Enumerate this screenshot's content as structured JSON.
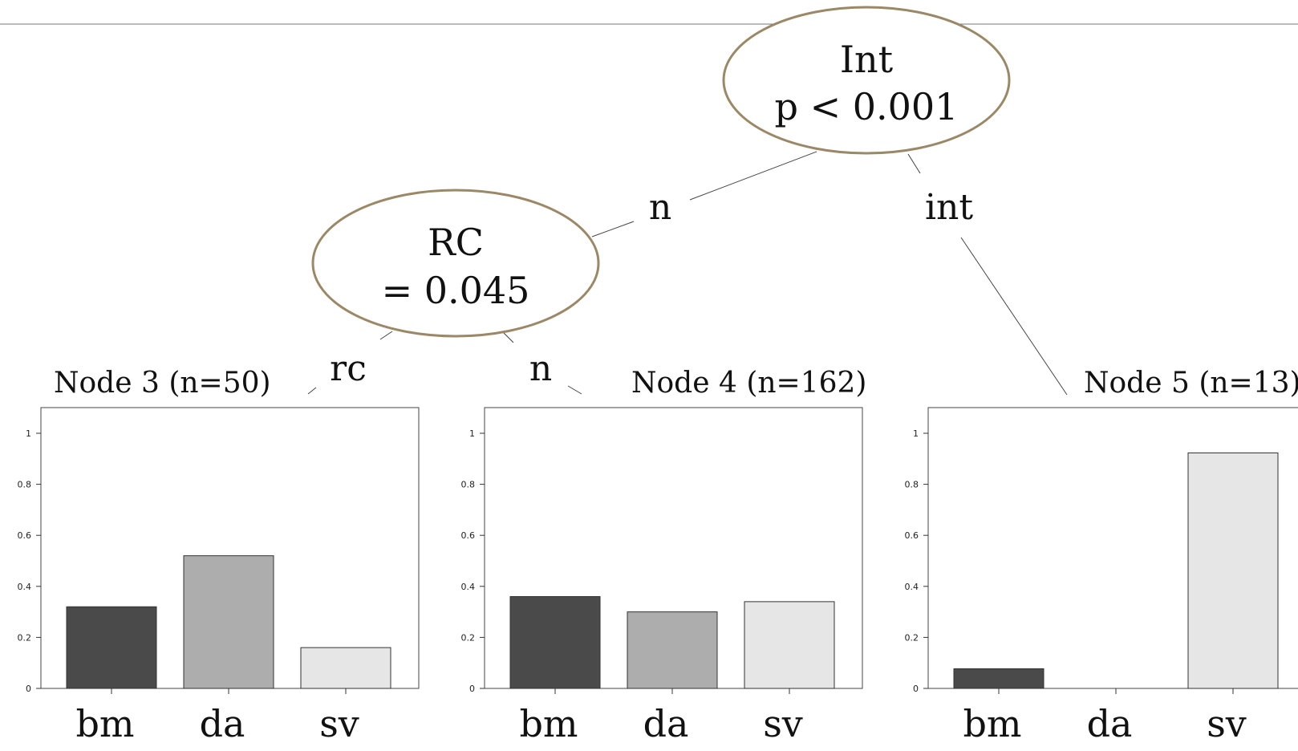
{
  "inner_nodes": [
    {
      "id": 1,
      "variable": "Int",
      "stat": "p < 0.001"
    },
    {
      "id": 2,
      "variable": "RC",
      "stat": "= 0.045"
    }
  ],
  "edges": [
    {
      "from": 1,
      "to": 2,
      "label": "n"
    },
    {
      "from": 1,
      "to": 5,
      "label": "int"
    },
    {
      "from": 2,
      "to": 3,
      "label": "rc"
    },
    {
      "from": 2,
      "to": 4,
      "label": "n"
    }
  ],
  "chart_data": [
    {
      "type": "bar",
      "title": "Node 3 (n=50)",
      "categories": [
        "bm",
        "da",
        "sv"
      ],
      "values": [
        0.32,
        0.52,
        0.16
      ],
      "ylim": [
        0,
        1
      ],
      "yticks": [
        "0",
        "0.2",
        "0.4",
        "0.6",
        "0.8",
        "1"
      ]
    },
    {
      "type": "bar",
      "title": "Node 4 (n=162)",
      "categories": [
        "bm",
        "da",
        "sv"
      ],
      "values": [
        0.36,
        0.3,
        0.34
      ],
      "ylim": [
        0,
        1
      ],
      "yticks": [
        "0",
        "0.2",
        "0.4",
        "0.6",
        "0.8",
        "1"
      ]
    },
    {
      "type": "bar",
      "title": "Node 5 (n=13)",
      "categories": [
        "bm",
        "da",
        "sv"
      ],
      "values": [
        0.077,
        0.0,
        0.923
      ],
      "ylim": [
        0,
        1
      ],
      "yticks": [
        "0",
        "0.2",
        "0.4",
        "0.6",
        "0.8",
        "1"
      ]
    }
  ],
  "colors": {
    "bm": "#4a4a4a",
    "da": "#adadad",
    "sv": "#e6e6e6",
    "node_border": "#9b8866"
  }
}
